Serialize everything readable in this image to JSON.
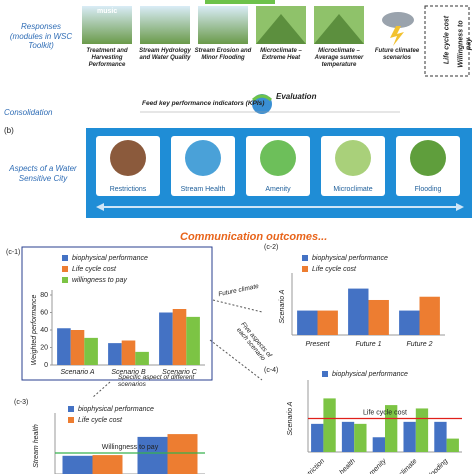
{
  "responses": {
    "label": "Responses (modules in WSC Toolkit)",
    "logo": "music",
    "modules": [
      "Treatment and Harvesting Performance",
      "Stream Hydrology and Water Quality",
      "Stream Erosion and Minor Flooding",
      "Microclimate – Extreme Heat",
      "Microclimate – Average summer temperature",
      "Future climatee scenarios"
    ],
    "extras": [
      "Life cycle cost",
      "Willingness to pay"
    ]
  },
  "consolidation": {
    "label": "Consolidation",
    "feed": "Feed key performance indicators (KPIs)",
    "evaluation": "Evaluation"
  },
  "aspects": {
    "panel_label": "(b)",
    "label": "Aspects of a Water Sensitive City",
    "items": [
      "Restrictions",
      "Stream Health",
      "Amenity",
      "Microclimate",
      "Flooding"
    ]
  },
  "communication": "Communication outcomes...",
  "annotations": {
    "future_climate": "Future climate",
    "specific_aspect": "Specific aspect of different scenarios",
    "five_aspects": "Five aspects of each scenario"
  },
  "chart_data": [
    {
      "type": "bar",
      "panel": "(c-1)",
      "y_label": "Weighted performance",
      "categories": [
        "Scenario A",
        "Scenario B",
        "Scenario C"
      ],
      "series": [
        {
          "name": "biophysical performance",
          "color": "#4472c4",
          "values": [
            42,
            25,
            60
          ]
        },
        {
          "name": "Life cycle cost",
          "color": "#ed7d31",
          "values": [
            40,
            28,
            64
          ]
        },
        {
          "name": "willingness to pay",
          "color": "#7cc444",
          "values": [
            31,
            15,
            55
          ]
        }
      ],
      "ylim": [
        0,
        80
      ],
      "yticks": [
        0,
        20,
        40,
        60,
        80
      ]
    },
    {
      "type": "bar",
      "panel": "(c-2)",
      "y_label": "Scenario A",
      "categories": [
        "Present",
        "Future 1",
        "Future 2"
      ],
      "series": [
        {
          "name": "biophysical performance",
          "color": "#4472c4",
          "values": [
            30,
            57,
            30
          ]
        },
        {
          "name": "Life cycle cost",
          "color": "#ed7d31",
          "values": [
            30,
            43,
            47
          ]
        }
      ],
      "ylim": [
        0,
        70
      ]
    },
    {
      "type": "bar",
      "panel": "(c-3)",
      "y_label": "Stream health",
      "categories": [
        null,
        null
      ],
      "series": [
        {
          "name": "biophysical performance",
          "color": "#4472c4",
          "values": [
            26,
            53
          ]
        },
        {
          "name": "Life cycle cost",
          "color": "#ed7d31",
          "values": [
            27,
            57
          ]
        }
      ],
      "reference_lines": [
        {
          "label": "Willingness to pay",
          "value": 30,
          "color": "#37b24d"
        }
      ],
      "ylim": [
        0,
        80
      ]
    },
    {
      "type": "bar",
      "panel": "(c-4)",
      "y_label": "Scenario A",
      "categories": [
        "striction",
        "health",
        "menity",
        "climate",
        "looding"
      ],
      "series": [
        {
          "name": "biophysical performance",
          "color": "#4472c4",
          "values": [
            42,
            45,
            22,
            45,
            45
          ]
        },
        {
          "color": "#7cc444",
          "values": [
            80,
            42,
            70,
            65,
            20
          ]
        }
      ],
      "reference_lines": [
        {
          "label": "Life cycle cost",
          "value": 50,
          "color": "#e0201b"
        }
      ],
      "ylim": [
        0,
        100
      ]
    }
  ]
}
